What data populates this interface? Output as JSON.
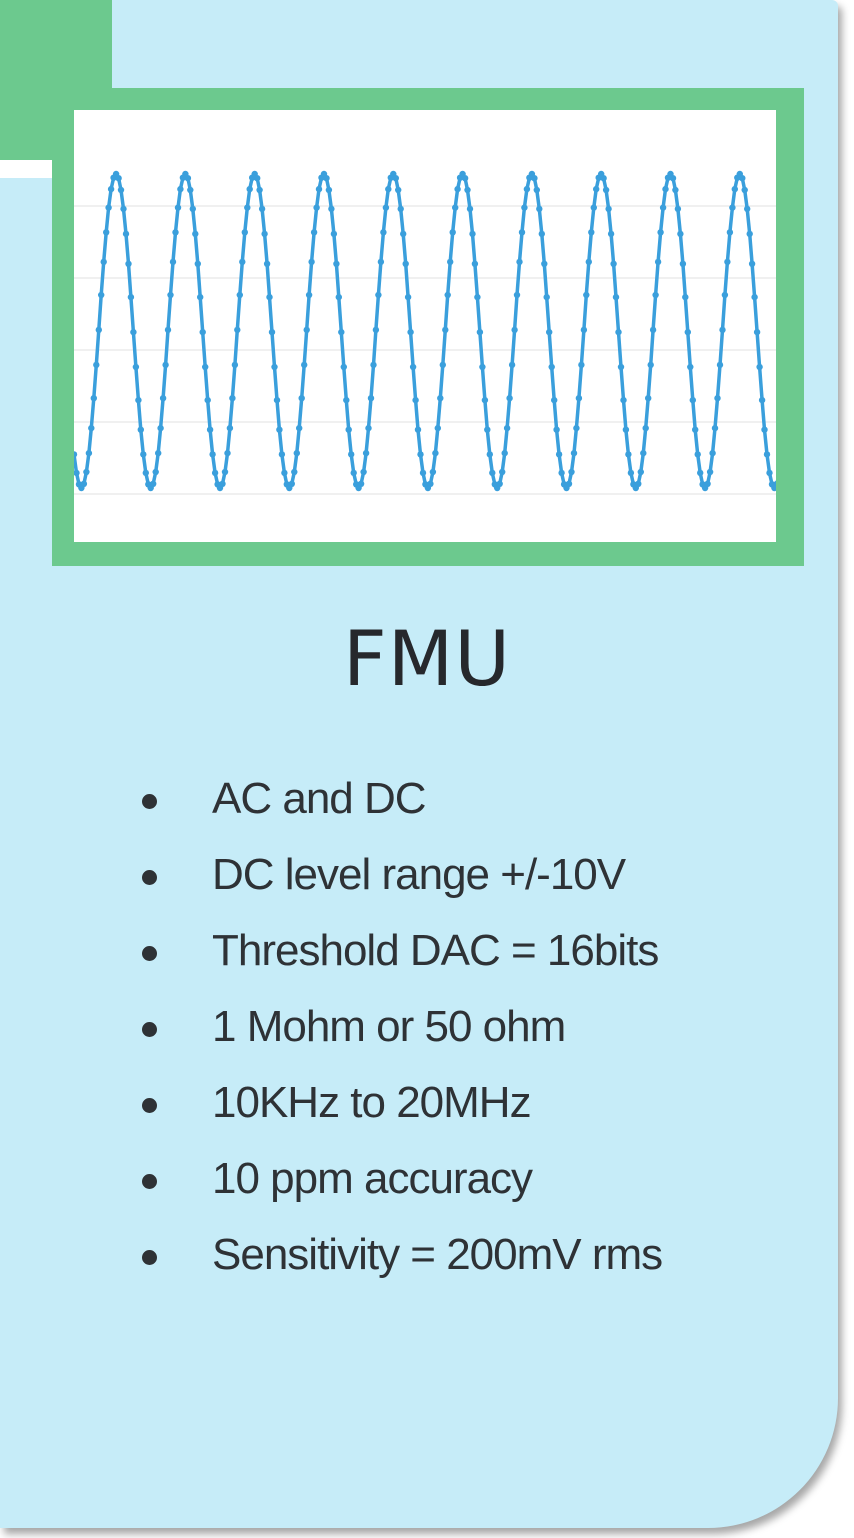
{
  "title": "FMU",
  "features": [
    "AC and DC",
    "DC level range +/-10V",
    "Threshold DAC = 16bits",
    "1 Mohm or 50 ohm",
    "10KHz to 20MHz",
    "10 ppm accuracy",
    "Sensitivity = 200mV rms"
  ],
  "colors": {
    "card_background": "#c6ecf8",
    "frame_green": "#6cc98e",
    "waveform_blue": "#3a9fdc",
    "text_dark": "#2e3236"
  },
  "waveform": {
    "shape": "sine",
    "visible_cycles": 10,
    "samples_per_cycle": 28,
    "icon": "sine-wave-plot"
  }
}
